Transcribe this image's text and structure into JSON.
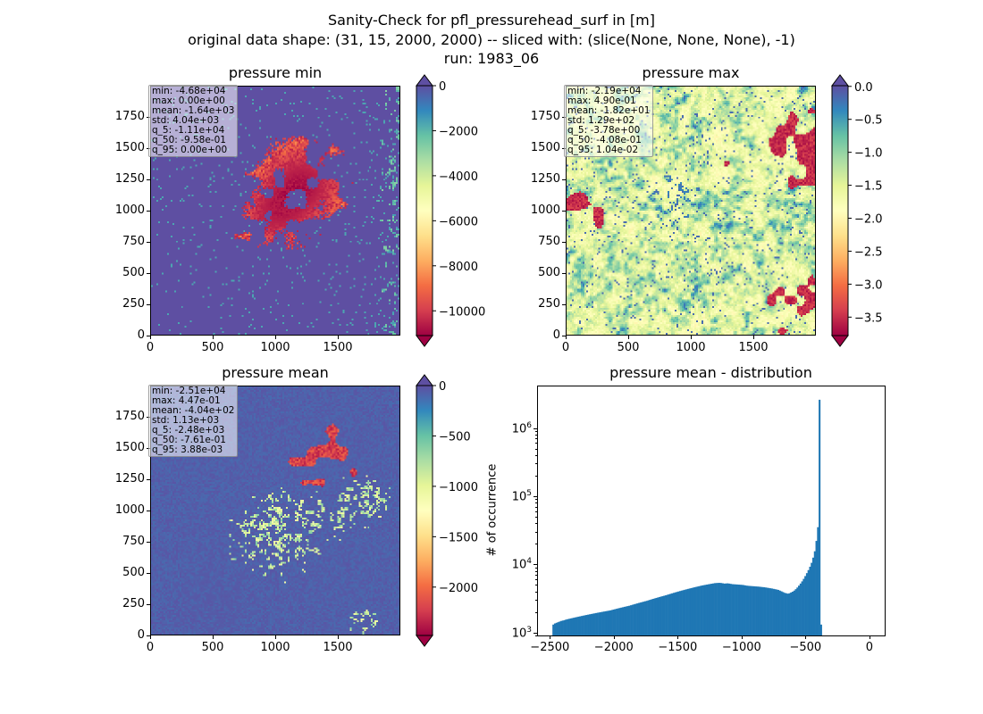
{
  "suptitle": {
    "line1": "Sanity-Check for pfl_pressurehead_surf in [m]",
    "line2": "original data shape: (31, 15, 2000, 2000) -- sliced with: (slice(None, None, None), -1)",
    "line3": "run: 1983_06"
  },
  "chart_data": [
    {
      "type": "heatmap",
      "title": "pressure min",
      "colormap": "Spectral",
      "colorbar_extend": "both",
      "xlim": [
        0,
        2000
      ],
      "ylim": [
        0,
        2000
      ],
      "xticks": [
        "0",
        "500",
        "1000",
        "1500"
      ],
      "yticks": [
        "0",
        "250",
        "500",
        "750",
        "1000",
        "1250",
        "1500",
        "1750"
      ],
      "colorbar_range": [
        -11100,
        0
      ],
      "colorbar_ticks": [
        "0",
        "−2000",
        "−4000",
        "−6000",
        "−8000",
        "−10000"
      ],
      "colorbar_tick_values": [
        0,
        -2000,
        -4000,
        -6000,
        -8000,
        -10000
      ],
      "stats": [
        "min: -4.68e+04",
        "max: 0.00e+00",
        "mean: -1.64e+03",
        "std: 4.04e+03",
        "q_5: -1.11e+04",
        "q_50: -9.58e-01",
        "q_95: 0.00e+00"
      ]
    },
    {
      "type": "heatmap",
      "title": "pressure max",
      "colormap": "Spectral",
      "colorbar_extend": "both",
      "xlim": [
        0,
        2000
      ],
      "ylim": [
        0,
        2000
      ],
      "xticks": [
        "0",
        "500",
        "1000",
        "1500"
      ],
      "yticks": [
        "0",
        "250",
        "500",
        "750",
        "1000",
        "1250",
        "1500",
        "1750"
      ],
      "colorbar_range": [
        -3.78,
        0.0104
      ],
      "colorbar_ticks": [
        "0.0",
        "−0.5",
        "−1.0",
        "−1.5",
        "−2.0",
        "−2.5",
        "−3.0",
        "−3.5"
      ],
      "colorbar_tick_values": [
        0,
        -0.5,
        -1.0,
        -1.5,
        -2.0,
        -2.5,
        -3.0,
        -3.5
      ],
      "stats": [
        "min: -2.19e+04",
        "max: 4.90e-01",
        "mean: -1.82e+01",
        "std: 1.29e+02",
        "q_5: -3.78e+00",
        "q_50: -4.08e-01",
        "q_95: 1.04e-02"
      ]
    },
    {
      "type": "heatmap",
      "title": "pressure mean",
      "colormap": "Spectral",
      "colorbar_extend": "both",
      "xlim": [
        0,
        2000
      ],
      "ylim": [
        0,
        2000
      ],
      "xticks": [
        "0",
        "500",
        "1000",
        "1500"
      ],
      "yticks": [
        "0",
        "250",
        "500",
        "750",
        "1000",
        "1250",
        "1500",
        "1750"
      ],
      "colorbar_range": [
        -2480,
        0.00388
      ],
      "colorbar_ticks": [
        "0",
        "−500",
        "−1000",
        "−1500",
        "−2000"
      ],
      "colorbar_tick_values": [
        0,
        -500,
        -1000,
        -1500,
        -2000
      ],
      "stats": [
        "min: -2.51e+04",
        "max: 4.47e-01",
        "mean: -4.04e+02",
        "std: 1.13e+03",
        "q_5: -2.48e+03",
        "q_50: -7.61e-01",
        "q_95: 3.88e-03"
      ]
    },
    {
      "type": "bar",
      "title": "pressure mean - distribution",
      "ylabel": "# of occurrence",
      "yscale": "log",
      "ylim": [
        900,
        4200000
      ],
      "xlim": [
        -2600,
        120
      ],
      "color": "#1f77b4",
      "xticks": [
        "−2500",
        "−2000",
        "−1500",
        "−1000",
        "−500",
        "0"
      ],
      "xtick_values": [
        -2500,
        -2000,
        -1500,
        -1000,
        -500,
        0
      ],
      "yticks": [
        "10",
        "10",
        "10",
        "10"
      ],
      "ytick_exponents": [
        "3",
        "4",
        "5",
        "6"
      ],
      "ytick_values": [
        1000,
        10000,
        100000,
        1000000
      ],
      "bin_edges_start": -2480,
      "bin_width": 12.4,
      "counts": [
        1300,
        1350,
        1380,
        1410,
        1440,
        1470,
        1490,
        1510,
        1540,
        1560,
        1580,
        1600,
        1620,
        1640,
        1660,
        1680,
        1700,
        1720,
        1740,
        1760,
        1780,
        1800,
        1820,
        1840,
        1860,
        1880,
        1900,
        1920,
        1940,
        1960,
        1980,
        2000,
        2020,
        2040,
        2060,
        2080,
        2100,
        2130,
        2160,
        2190,
        2220,
        2250,
        2280,
        2310,
        2340,
        2370,
        2400,
        2430,
        2460,
        2500,
        2540,
        2580,
        2620,
        2660,
        2700,
        2740,
        2780,
        2820,
        2860,
        2900,
        2950,
        3000,
        3050,
        3100,
        3150,
        3200,
        3250,
        3300,
        3350,
        3400,
        3450,
        3500,
        3560,
        3620,
        3680,
        3740,
        3800,
        3860,
        3920,
        3980,
        4040,
        4100,
        4160,
        4220,
        4280,
        4340,
        4400,
        4460,
        4520,
        4580,
        4640,
        4700,
        4760,
        4820,
        4880,
        4930,
        4980,
        5030,
        5080,
        5130,
        5180,
        5230,
        5280,
        5300,
        5320,
        5330,
        5300,
        5250,
        5200,
        5220,
        5240,
        5200,
        5150,
        5100,
        5080,
        5060,
        5040,
        5020,
        5000,
        4980,
        4950,
        4900,
        4850,
        4820,
        4800,
        4780,
        4760,
        4740,
        4720,
        4700,
        4680,
        4650,
        4620,
        4600,
        4560,
        4520,
        4480,
        4440,
        4400,
        4350,
        4300,
        4250,
        4200,
        4100,
        4000,
        3900,
        3800,
        3750,
        3700,
        3750,
        3850,
        3950,
        4100,
        4300,
        4550,
        4850,
        5200,
        5600,
        6100,
        6700,
        7400,
        8200,
        9200,
        10500,
        12500,
        15500,
        22000,
        35000,
        2600000,
        1300
      ]
    }
  ]
}
